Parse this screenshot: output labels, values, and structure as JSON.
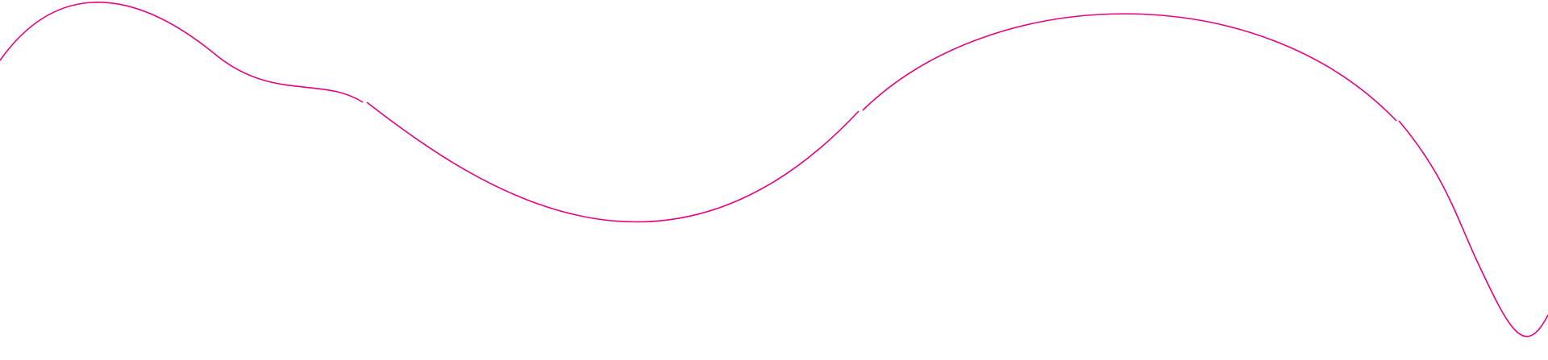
{
  "decoration": {
    "type": "wavy-line",
    "stroke_color": "#e6007e",
    "background_color": "#ffffff"
  }
}
